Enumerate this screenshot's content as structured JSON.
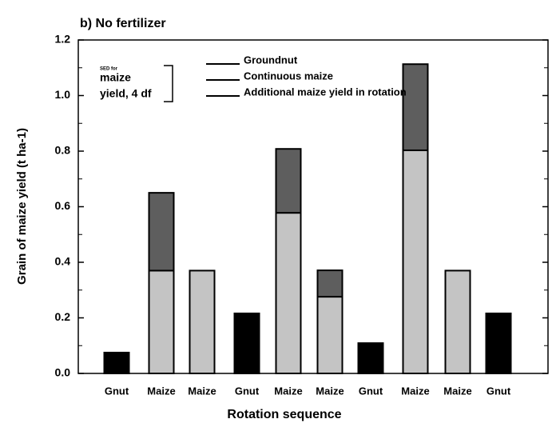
{
  "chart_data": {
    "type": "bar",
    "stacked": true,
    "title": "b) No fertilizer",
    "x_label": "Rotation sequence",
    "y_label": "Grain of maize yield (t ha-1)",
    "categories": [
      "Gnut",
      "Maize",
      "Maize",
      "Gnut",
      "Maize",
      "Maize",
      "Gnut",
      "Maize",
      "Maize",
      "Gnut"
    ],
    "series": [
      {
        "name": "Groundnut",
        "color": "#000000",
        "values": [
          0.075,
          null,
          null,
          0.216,
          null,
          null,
          0.109,
          null,
          null,
          0.216
        ]
      },
      {
        "name": "Continuous maize",
        "color": "#c4c4c4",
        "values": [
          null,
          0.37,
          0.37,
          null,
          0.578,
          0.276,
          null,
          0.803,
          0.37,
          null
        ]
      },
      {
        "name": "Additional maize yield in rotation",
        "color": "#5e5e5e",
        "values": [
          null,
          0.28,
          null,
          null,
          0.23,
          0.095,
          null,
          0.31,
          null,
          null
        ]
      }
    ],
    "ylim": [
      0,
      1.2
    ],
    "yticks": [
      {
        "value": 0,
        "label": "0.0"
      },
      0.2,
      0.4,
      0.6,
      0.8,
      {
        "value": 1,
        "label": "1.0"
      },
      1.2
    ],
    "minor_yticks": [
      0.1,
      0.3,
      0.5,
      0.7,
      0.9,
      1.1
    ],
    "sed": {
      "label_lines": [
        "SED for",
        "maize",
        "yield, 4 df"
      ],
      "value": 0.13
    }
  }
}
